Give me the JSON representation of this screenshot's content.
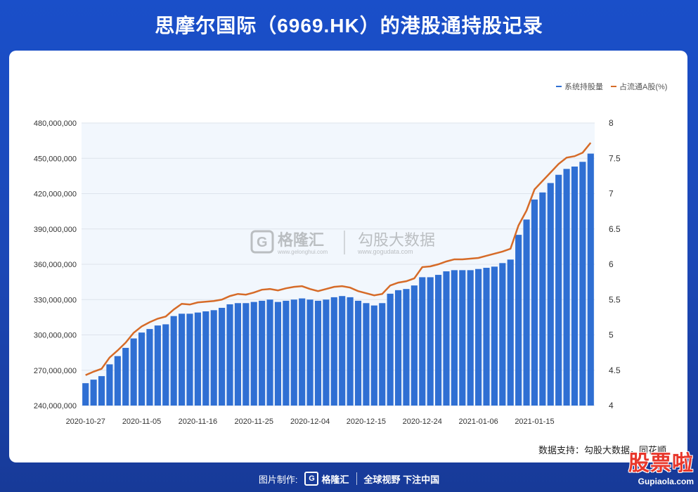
{
  "title": "思摩尔国际（6969.HK）的港股通持股记录",
  "source_note": "数据支持：勾股大数据，同花顺",
  "watermark": {
    "brand_name": "格隆汇",
    "brand_url": "www.gelonghui.com",
    "data_name": "勾股大数据",
    "data_url": "www.gogudata.com"
  },
  "footer": {
    "made_by": "图片制作:",
    "brand": "格隆汇",
    "slogan": "全球视野 下注中国"
  },
  "corner_logo": {
    "text": "股票啦",
    "url": "Gupiaola.com"
  },
  "colors": {
    "bar": "#2f6fd3",
    "line": "#d66b28",
    "plot_bg": "#f2f7fd",
    "grid": "#dde3ec",
    "axis_text": "#333333"
  },
  "chart_data": {
    "type": "bar",
    "legend_position": "top-right",
    "grid": true,
    "x_tick_labels": [
      "2020-10-27",
      "2020-11-05",
      "2020-11-16",
      "2020-11-25",
      "2020-12-04",
      "2020-12-15",
      "2020-12-24",
      "2021-01-06",
      "2021-01-15"
    ],
    "x_tick_indices": [
      0,
      7,
      14,
      21,
      28,
      35,
      42,
      49,
      56
    ],
    "y_left": {
      "min": 240000000,
      "max": 480000000,
      "ticks": [
        "240,000,000",
        "270,000,000",
        "300,000,000",
        "330,000,000",
        "360,000,000",
        "390,000,000",
        "420,000,000",
        "450,000,000",
        "480,000,000"
      ]
    },
    "y_right": {
      "min": 4,
      "max": 8,
      "ticks": [
        "4",
        "4.5",
        "5",
        "5.5",
        "6",
        "6.5",
        "7",
        "7.5",
        "8"
      ]
    },
    "series": [
      {
        "name": "系统持股量",
        "axis": "left",
        "values": [
          259,
          262,
          265,
          275,
          282,
          289,
          297,
          302,
          305,
          308,
          309,
          316,
          318,
          318,
          319,
          320,
          321,
          323,
          326,
          327,
          327,
          328,
          329,
          330,
          328,
          329,
          330,
          331,
          330,
          329,
          330,
          332,
          333,
          332,
          329,
          327,
          325,
          327,
          335,
          338,
          339,
          342,
          349,
          349,
          351,
          354,
          355,
          355,
          355,
          356,
          357,
          358,
          361,
          364,
          385,
          398,
          415,
          421,
          429,
          436,
          441,
          443,
          447,
          454
        ]
      },
      {
        "name": "占流通A股(%)",
        "axis": "right",
        "values": [
          4.43,
          4.48,
          4.52,
          4.68,
          4.78,
          4.89,
          5.03,
          5.12,
          5.18,
          5.23,
          5.26,
          5.36,
          5.44,
          5.43,
          5.46,
          5.47,
          5.48,
          5.5,
          5.55,
          5.58,
          5.57,
          5.6,
          5.64,
          5.65,
          5.63,
          5.66,
          5.68,
          5.69,
          5.65,
          5.62,
          5.65,
          5.68,
          5.69,
          5.67,
          5.62,
          5.59,
          5.56,
          5.58,
          5.7,
          5.74,
          5.76,
          5.8,
          5.96,
          5.97,
          6.0,
          6.04,
          6.07,
          6.07,
          6.08,
          6.09,
          6.12,
          6.15,
          6.18,
          6.22,
          6.55,
          6.76,
          7.06,
          7.18,
          7.3,
          7.42,
          7.51,
          7.53,
          7.58,
          7.72
        ]
      }
    ],
    "values_unit_note": "系统持股量 values are in millions of shares"
  }
}
